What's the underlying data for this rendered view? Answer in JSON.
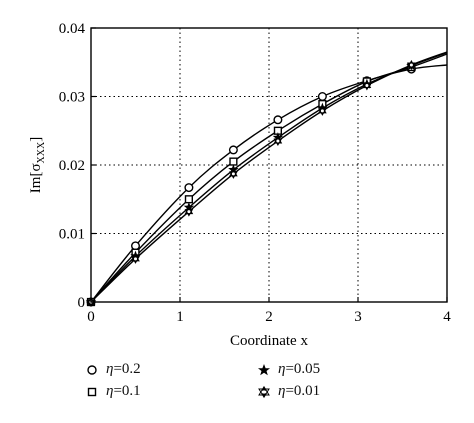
{
  "chart_data": {
    "type": "line",
    "xlabel": "Coordinate x",
    "ylabel_main": "Im[",
    "ylabel_sub": "σ",
    "ylabel_subscript": "XXX",
    "ylabel_end": "]",
    "xlim": [
      0,
      4
    ],
    "ylim": [
      0,
      0.04
    ],
    "x_ticks": [
      "0",
      "1",
      "2",
      "3",
      "4"
    ],
    "y_ticks": [
      "0",
      "0.01",
      "0.02",
      "0.03",
      "0.04"
    ],
    "grid": true,
    "series": [
      {
        "name": "η=0.2",
        "marker": "circle",
        "x": [
          0,
          0.5,
          1.1,
          1.6,
          2.1,
          2.6,
          3.1,
          3.6,
          4.0
        ],
        "y": [
          0,
          0.0082,
          0.0167,
          0.0222,
          0.0266,
          0.03,
          0.0323,
          0.034,
          0.0346
        ]
      },
      {
        "name": "η=0.1",
        "marker": "square",
        "x": [
          0,
          0.5,
          1.1,
          1.6,
          2.1,
          2.6,
          3.1,
          3.6,
          4.0
        ],
        "y": [
          0,
          0.0072,
          0.015,
          0.0205,
          0.025,
          0.0289,
          0.0322,
          0.0343,
          0.0362
        ]
      },
      {
        "name": "η=0.05",
        "marker": "star",
        "x": [
          0,
          0.5,
          1.1,
          1.6,
          2.1,
          2.6,
          3.1,
          3.6,
          4.0
        ],
        "y": [
          0,
          0.0067,
          0.0138,
          0.0193,
          0.024,
          0.0283,
          0.0318,
          0.0345,
          0.0364
        ]
      },
      {
        "name": "η=0.01",
        "marker": "hexstar",
        "x": [
          0,
          0.5,
          1.1,
          1.6,
          2.1,
          2.6,
          3.1,
          3.6,
          4.0
        ],
        "y": [
          0,
          0.0063,
          0.0132,
          0.0187,
          0.0235,
          0.0279,
          0.0316,
          0.0346,
          0.0365
        ]
      }
    ],
    "legend": {
      "placement": "bottom",
      "items": [
        {
          "symbol": "circle",
          "eta": "η",
          "label": "=0.2"
        },
        {
          "symbol": "square",
          "eta": "η",
          "label": "=0.1"
        },
        {
          "symbol": "star",
          "eta": "η",
          "label": "=0.05"
        },
        {
          "symbol": "hexstar",
          "eta": "η",
          "label": "=0.01"
        }
      ]
    }
  }
}
